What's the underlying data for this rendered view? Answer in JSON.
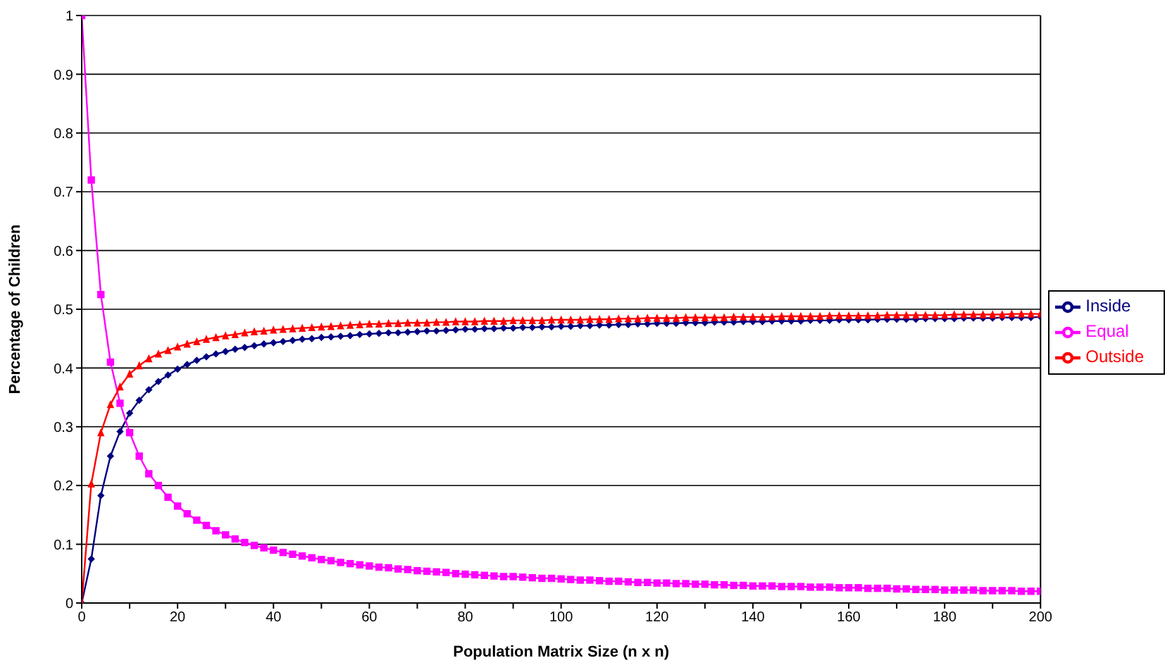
{
  "chart_data": {
    "type": "line",
    "xlabel": "Population Matrix Size (n x n)",
    "ylabel": "Percentage of Children",
    "x": [
      0,
      2,
      4,
      6,
      8,
      10,
      12,
      14,
      16,
      18,
      20,
      22,
      24,
      26,
      28,
      30,
      32,
      34,
      36,
      38,
      40,
      42,
      44,
      46,
      48,
      50,
      52,
      54,
      56,
      58,
      60,
      62,
      64,
      66,
      68,
      70,
      72,
      74,
      76,
      78,
      80,
      82,
      84,
      86,
      88,
      90,
      92,
      94,
      96,
      98,
      100,
      102,
      104,
      106,
      108,
      110,
      112,
      114,
      116,
      118,
      120,
      122,
      124,
      126,
      128,
      130,
      132,
      134,
      136,
      138,
      140,
      142,
      144,
      146,
      148,
      150,
      152,
      154,
      156,
      158,
      160,
      162,
      164,
      166,
      168,
      170,
      172,
      174,
      176,
      178,
      180,
      182,
      184,
      186,
      188,
      190,
      192,
      194,
      196,
      198,
      200
    ],
    "series": [
      {
        "name": "Inside",
        "color": "#000080",
        "marker": "diamond",
        "values": [
          0,
          0.075,
          0.183,
          0.25,
          0.292,
          0.323,
          0.345,
          0.363,
          0.377,
          0.388,
          0.398,
          0.406,
          0.413,
          0.419,
          0.424,
          0.428,
          0.432,
          0.435,
          0.438,
          0.441,
          0.443,
          0.445,
          0.447,
          0.449,
          0.45,
          0.452,
          0.453,
          0.454,
          0.455,
          0.457,
          0.458,
          0.459,
          0.46,
          0.46,
          0.461,
          0.462,
          0.463,
          0.463,
          0.464,
          0.465,
          0.466,
          0.466,
          0.467,
          0.467,
          0.468,
          0.468,
          0.469,
          0.469,
          0.47,
          0.47,
          0.471,
          0.471,
          0.472,
          0.472,
          0.473,
          0.473,
          0.474,
          0.474,
          0.475,
          0.475,
          0.476,
          0.476,
          0.476,
          0.477,
          0.477,
          0.477,
          0.478,
          0.478,
          0.478,
          0.479,
          0.479,
          0.479,
          0.48,
          0.48,
          0.48,
          0.48,
          0.481,
          0.481,
          0.481,
          0.482,
          0.482,
          0.482,
          0.482,
          0.483,
          0.483,
          0.483,
          0.483,
          0.483,
          0.484,
          0.484,
          0.484,
          0.484,
          0.485,
          0.485,
          0.485,
          0.485,
          0.486,
          0.486,
          0.486,
          0.486,
          0.487
        ]
      },
      {
        "name": "Equal",
        "color": "#ff00ff",
        "marker": "square",
        "values": [
          1,
          0.72,
          0.525,
          0.41,
          0.34,
          0.29,
          0.25,
          0.22,
          0.2,
          0.18,
          0.165,
          0.152,
          0.141,
          0.132,
          0.123,
          0.116,
          0.109,
          0.103,
          0.098,
          0.094,
          0.09,
          0.086,
          0.083,
          0.08,
          0.077,
          0.074,
          0.072,
          0.069,
          0.067,
          0.065,
          0.063,
          0.061,
          0.06,
          0.058,
          0.057,
          0.055,
          0.054,
          0.053,
          0.052,
          0.05,
          0.049,
          0.048,
          0.047,
          0.046,
          0.045,
          0.045,
          0.044,
          0.043,
          0.042,
          0.042,
          0.041,
          0.04,
          0.039,
          0.039,
          0.038,
          0.037,
          0.037,
          0.036,
          0.035,
          0.035,
          0.034,
          0.034,
          0.033,
          0.033,
          0.032,
          0.032,
          0.031,
          0.031,
          0.03,
          0.03,
          0.029,
          0.029,
          0.029,
          0.028,
          0.028,
          0.028,
          0.027,
          0.027,
          0.027,
          0.026,
          0.026,
          0.026,
          0.025,
          0.025,
          0.025,
          0.024,
          0.024,
          0.023,
          0.023,
          0.023,
          0.022,
          0.022,
          0.022,
          0.022,
          0.021,
          0.021,
          0.021,
          0.021,
          0.02,
          0.02,
          0.02
        ]
      },
      {
        "name": "Outside",
        "color": "#ff0000",
        "marker": "triangle",
        "values": [
          0,
          0.203,
          0.29,
          0.338,
          0.368,
          0.39,
          0.404,
          0.416,
          0.424,
          0.43,
          0.436,
          0.441,
          0.445,
          0.449,
          0.452,
          0.455,
          0.457,
          0.46,
          0.462,
          0.463,
          0.465,
          0.466,
          0.467,
          0.468,
          0.469,
          0.47,
          0.471,
          0.472,
          0.473,
          0.474,
          0.475,
          0.475,
          0.476,
          0.476,
          0.477,
          0.477,
          0.477,
          0.478,
          0.478,
          0.479,
          0.479,
          0.479,
          0.48,
          0.48,
          0.48,
          0.481,
          0.481,
          0.481,
          0.481,
          0.482,
          0.482,
          0.482,
          0.482,
          0.483,
          0.483,
          0.483,
          0.484,
          0.484,
          0.484,
          0.485,
          0.485,
          0.485,
          0.485,
          0.486,
          0.486,
          0.486,
          0.486,
          0.486,
          0.487,
          0.487,
          0.487,
          0.487,
          0.487,
          0.488,
          0.488,
          0.488,
          0.488,
          0.488,
          0.489,
          0.489,
          0.489,
          0.489,
          0.489,
          0.489,
          0.49,
          0.49,
          0.49,
          0.49,
          0.49,
          0.49,
          0.49,
          0.491,
          0.491,
          0.491,
          0.491,
          0.491,
          0.491,
          0.492,
          0.492,
          0.492,
          0.492
        ]
      }
    ],
    "xlim": [
      0,
      200
    ],
    "xticks": [
      0,
      {
        "value": 10,
        "label": null
      },
      20,
      {
        "value": 30,
        "label": null
      },
      40,
      {
        "value": 50,
        "label": null
      },
      60,
      {
        "value": 70,
        "label": null
      },
      80,
      {
        "value": 90,
        "label": null
      },
      100,
      {
        "value": 110,
        "label": null
      },
      120,
      {
        "value": 130,
        "label": null
      },
      140,
      {
        "value": 150,
        "label": null
      },
      160,
      {
        "value": 170,
        "label": null
      },
      180,
      {
        "value": 190,
        "label": null
      },
      200
    ],
    "ylim": [
      0,
      1
    ],
    "yticks": [
      0,
      0.1,
      0.2,
      0.3,
      0.4,
      0.5,
      0.6,
      0.7,
      0.8,
      0.9,
      1
    ],
    "grid": "y",
    "legend": "right",
    "line_style": "solid"
  }
}
